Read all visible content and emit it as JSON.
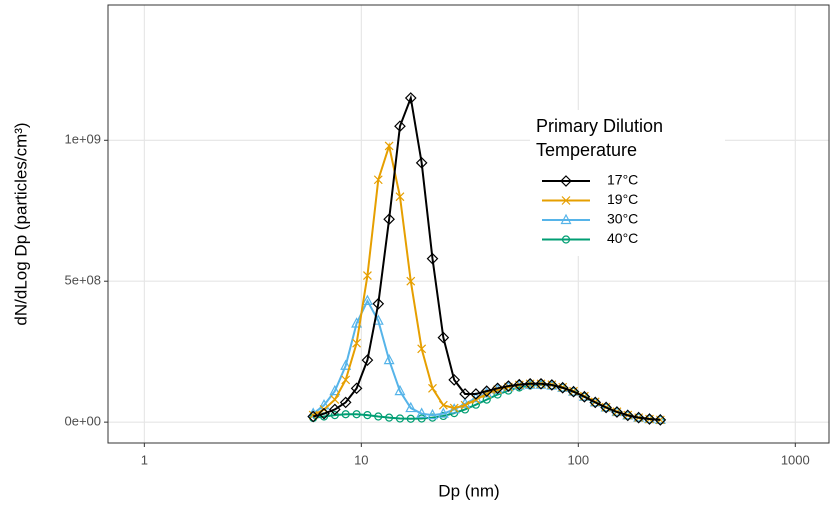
{
  "chart_data": {
    "type": "line",
    "x_label": "Dp (nm)",
    "y_label": "dN/dLog Dp (particles/cm³)",
    "legend_title": "Primary Dilution Temperature",
    "x_log": true,
    "grid": true,
    "xlim": [
      0.68,
      1430
    ],
    "xticks": [
      1,
      10,
      100,
      1000
    ],
    "ylim": [
      -74000000,
      1480000000
    ],
    "yticks": [
      {
        "value": 0,
        "label": "0e+00"
      },
      {
        "value": 500000000,
        "label": "5e+08"
      },
      {
        "value": 1000000000,
        "label": "1e+09"
      }
    ],
    "x": [
      6.0,
      6.73,
      7.55,
      8.47,
      9.51,
      10.67,
      11.97,
      13.43,
      15.07,
      16.9,
      18.97,
      21.28,
      23.88,
      26.79,
      30.06,
      33.73,
      37.84,
      42.46,
      47.64,
      53.46,
      59.98,
      67.3,
      75.51,
      84.72,
      95.06,
      106.7,
      119.7,
      134.3,
      150.7,
      169.0,
      189.7,
      212.8,
      238.8
    ],
    "series": [
      {
        "name": "17°C",
        "color": "#000000",
        "marker": "diamond",
        "values": [
          20000000,
          30000000,
          45000000,
          70000000,
          120000000,
          220000000,
          420000000,
          720000000,
          1050000000,
          1150000000,
          920000000,
          580000000,
          300000000,
          150000000,
          100000000,
          100000000,
          110000000,
          120000000,
          128000000,
          133000000,
          136000000,
          136000000,
          132000000,
          122000000,
          108000000,
          90000000,
          70000000,
          52000000,
          36000000,
          24000000,
          16000000,
          11000000,
          8000000
        ]
      },
      {
        "name": "19°C",
        "color": "#E69F00",
        "marker": "cross",
        "values": [
          25000000,
          45000000,
          80000000,
          150000000,
          280000000,
          520000000,
          860000000,
          980000000,
          800000000,
          500000000,
          260000000,
          120000000,
          60000000,
          50000000,
          60000000,
          80000000,
          100000000,
          115000000,
          125000000,
          132000000,
          136000000,
          136000000,
          133000000,
          124000000,
          110000000,
          92000000,
          72000000,
          53000000,
          37000000,
          25000000,
          16000000,
          11000000,
          8000000
        ]
      },
      {
        "name": "30°C",
        "color": "#56B4E9",
        "marker": "triangle",
        "values": [
          30000000,
          60000000,
          110000000,
          200000000,
          350000000,
          430000000,
          360000000,
          220000000,
          110000000,
          50000000,
          30000000,
          25000000,
          30000000,
          45000000,
          65000000,
          85000000,
          102000000,
          115000000,
          124000000,
          130000000,
          133000000,
          133000000,
          130000000,
          122000000,
          108000000,
          90000000,
          70000000,
          52000000,
          36000000,
          24000000,
          16000000,
          11000000,
          8000000
        ]
      },
      {
        "name": "40°C",
        "color": "#009E73",
        "marker": "circle",
        "values": [
          15000000,
          20000000,
          25000000,
          28000000,
          28000000,
          25000000,
          20000000,
          16000000,
          13000000,
          12000000,
          13000000,
          16000000,
          22000000,
          32000000,
          45000000,
          62000000,
          80000000,
          98000000,
          112000000,
          123000000,
          130000000,
          132000000,
          130000000,
          122000000,
          108000000,
          90000000,
          70000000,
          52000000,
          36000000,
          24000000,
          16000000,
          11000000,
          8000000
        ]
      }
    ]
  }
}
